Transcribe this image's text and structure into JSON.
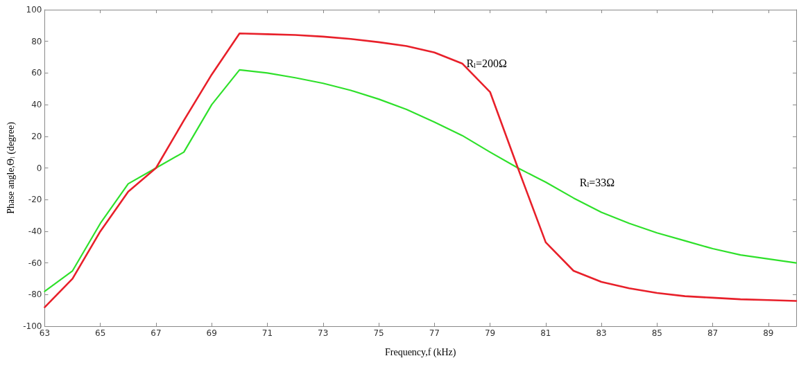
{
  "chart_data": {
    "type": "line",
    "xlabel": "Frequency,f (kHz)",
    "ylabel": "Phase angle,Θ$_{l}$ (degree)",
    "x": [
      63,
      64,
      65,
      66,
      67,
      68,
      69,
      70,
      71,
      72,
      73,
      74,
      75,
      76,
      77,
      78,
      79,
      80,
      81,
      82,
      83,
      84,
      85,
      86,
      87,
      88,
      89,
      90
    ],
    "series": [
      {
        "name": "R$_{l}$=200Ω",
        "color": "#e8202a",
        "values": [
          -88,
          -70,
          -40,
          -15,
          0,
          30,
          59,
          85,
          84.5,
          84,
          83,
          81.5,
          79.5,
          77,
          73,
          66,
          48,
          0,
          -47,
          -65,
          -72,
          -76,
          -79,
          -81,
          -82,
          -83,
          -83.5,
          -84
        ]
      },
      {
        "name": "R$_{l}$=33Ω",
        "color": "#2ee02a",
        "values": [
          -78,
          -65,
          -35,
          -10,
          0,
          10,
          40,
          62,
          60,
          57,
          53.5,
          49,
          43.5,
          37,
          29,
          20.5,
          10,
          0,
          -9,
          -19,
          -28,
          -35,
          -41,
          -46,
          -51,
          -55,
          -57.5,
          -60
        ]
      }
    ],
    "xlim": [
      63,
      90
    ],
    "xticks": [
      63,
      65,
      67,
      69,
      71,
      73,
      75,
      77,
      79,
      81,
      83,
      85,
      87,
      89
    ],
    "ylim": [
      -100,
      100
    ],
    "yticks": [
      -100,
      -80,
      -60,
      -40,
      -20,
      0,
      20,
      40,
      60,
      80,
      100
    ],
    "grid": false,
    "legend": false,
    "marker": "none",
    "line_style": "solid"
  }
}
